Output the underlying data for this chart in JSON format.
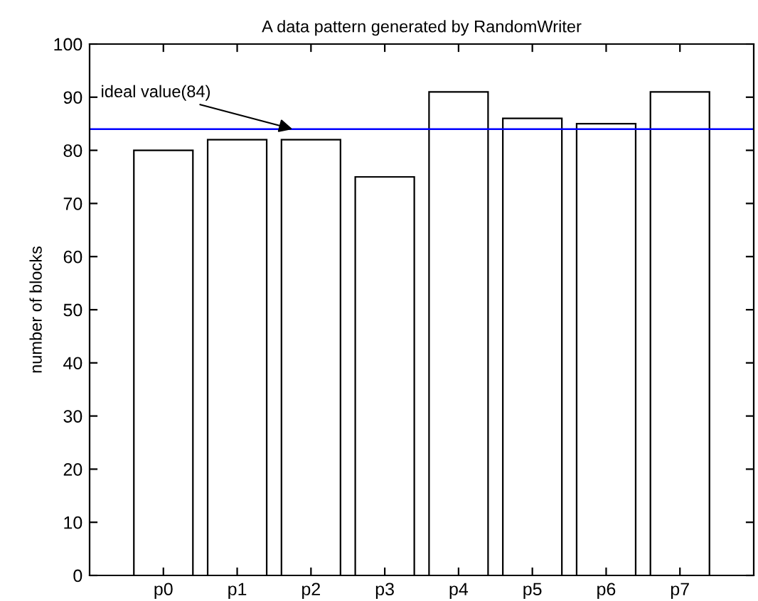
{
  "chart_data": {
    "type": "bar",
    "title": "A data pattern generated by RandomWriter",
    "ylabel": "number of blocks",
    "categories": [
      "p0",
      "p1",
      "p2",
      "p3",
      "p4",
      "p5",
      "p6",
      "p7"
    ],
    "values": [
      80,
      82,
      82,
      75,
      91,
      86,
      85,
      91
    ],
    "color": "#ffffff",
    "ylim": [
      0,
      100
    ],
    "yticks": [
      0,
      10,
      20,
      30,
      40,
      50,
      60,
      70,
      80,
      90,
      100
    ],
    "grid": false,
    "ref_lines": [
      {
        "axis": "y",
        "value": 84,
        "label": "ideal value(84)",
        "color": "#0000ff"
      }
    ]
  }
}
